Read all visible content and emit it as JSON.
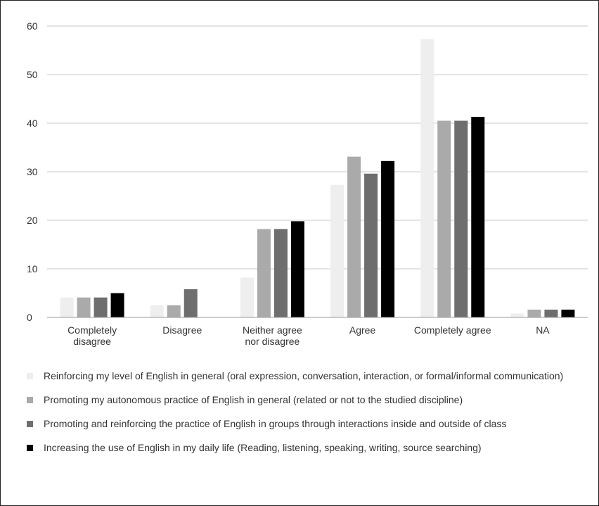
{
  "chart_data": {
    "type": "bar",
    "title": "",
    "xlabel": "",
    "ylabel": "",
    "ylim": [
      0,
      60
    ],
    "yticks": [
      0,
      10,
      20,
      30,
      40,
      50,
      60
    ],
    "grid": true,
    "legend_position": "bottom",
    "categories": [
      [
        "Completely",
        "disagree"
      ],
      [
        "Disagree"
      ],
      [
        "Neither agree",
        "nor disagree"
      ],
      [
        "Agree"
      ],
      [
        "Completely agree"
      ],
      [
        "NA"
      ]
    ],
    "series": [
      {
        "name": "Reinforcing my level of English in general (oral expression, conversation, interaction, or formal/informal communication)",
        "color": "#eeeeee",
        "values": [
          4.1,
          2.5,
          8.2,
          27.3,
          57.3,
          0.8
        ]
      },
      {
        "name": "Promoting my autonomous practice of English in general (related or not to the studied discipline)",
        "color": "#aaaaaa",
        "values": [
          4.1,
          2.5,
          18.2,
          33.1,
          40.5,
          1.6
        ]
      },
      {
        "name": "Promoting and reinforcing the practice of English in groups through interactions inside and outside of class",
        "color": "#6e6e6e",
        "values": [
          4.1,
          5.8,
          18.2,
          29.6,
          40.5,
          1.6
        ]
      },
      {
        "name": "Increasing the use of English in my daily life (Reading, listening, speaking, writing, source searching)",
        "color": "#000000",
        "values": [
          5.0,
          0,
          19.8,
          32.2,
          41.3,
          1.6
        ]
      }
    ]
  }
}
